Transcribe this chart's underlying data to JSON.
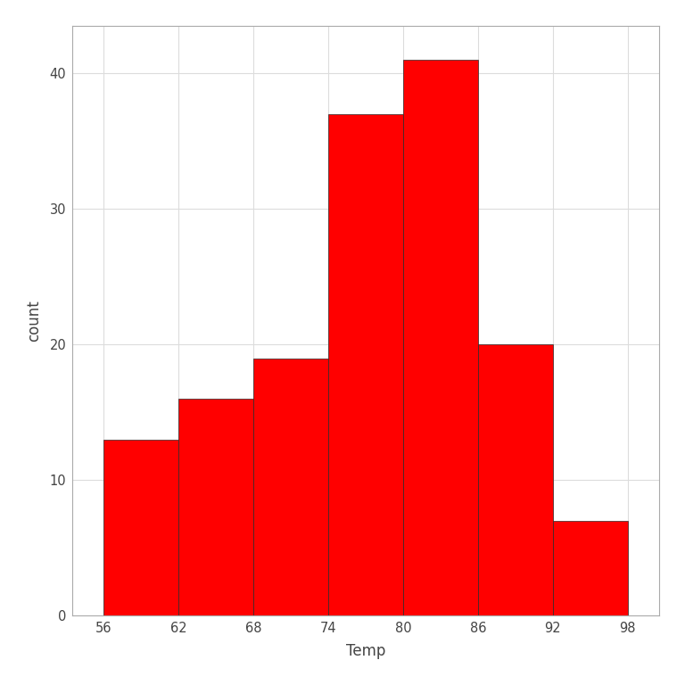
{
  "bin_edges": [
    56,
    62,
    68,
    74,
    80,
    86,
    92,
    98
  ],
  "counts": [
    13,
    16,
    19,
    37,
    41,
    20,
    7
  ],
  "bar_color": "#FF0000",
  "bar_edgecolor": "#2a2a2a",
  "bar_linewidth": 0.5,
  "xlabel": "Temp",
  "ylabel": "count",
  "xlim": [
    53.5,
    100.5
  ],
  "ylim": [
    0,
    43.5
  ],
  "xticks": [
    56,
    62,
    68,
    74,
    80,
    86,
    92,
    98
  ],
  "yticks": [
    0,
    10,
    20,
    30,
    40
  ],
  "background_color": "#FFFFFF",
  "panel_background": "#FFFFFF",
  "grid_color": "#DCDCDC",
  "grid_linewidth": 0.8,
  "xlabel_fontsize": 12,
  "ylabel_fontsize": 12,
  "tick_fontsize": 10.5,
  "tick_color": "#444444"
}
